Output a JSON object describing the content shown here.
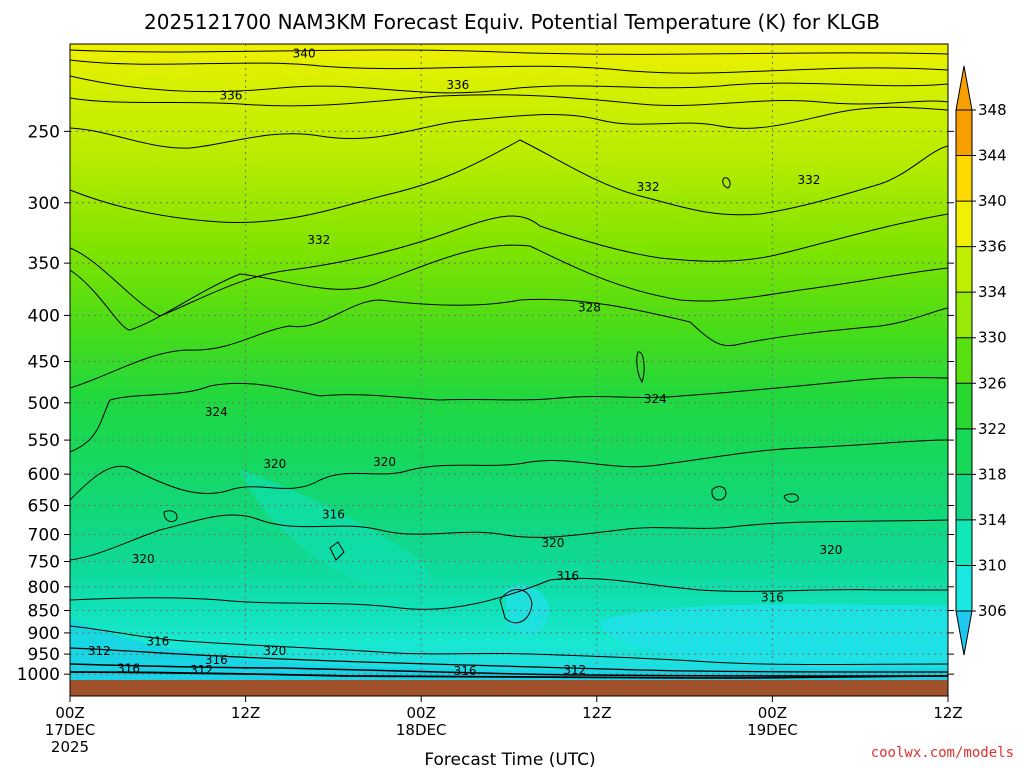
{
  "chart_data": {
    "type": "heatmap",
    "title": "2025121700 NAM3KM Forecast Equiv. Potential Temperature (K) for KLGB",
    "xlabel": "Forecast Time (UTC)",
    "ylabel": "",
    "x_ticks": [
      {
        "hour": 0,
        "label": "00Z",
        "date": "17DEC",
        "year": "2025"
      },
      {
        "hour": 12,
        "label": "12Z",
        "date": "",
        "year": ""
      },
      {
        "hour": 24,
        "label": "00Z",
        "date": "18DEC",
        "year": ""
      },
      {
        "hour": 36,
        "label": "12Z",
        "date": "",
        "year": ""
      },
      {
        "hour": 48,
        "label": "00Z",
        "date": "19DEC",
        "year": ""
      },
      {
        "hour": 60,
        "label": "12Z",
        "date": "",
        "year": ""
      }
    ],
    "xlim": [
      0,
      60
    ],
    "y_ticks": [
      250,
      300,
      350,
      400,
      450,
      500,
      550,
      600,
      650,
      700,
      750,
      800,
      850,
      900,
      950,
      1000
    ],
    "ylim": [
      1015,
      200
    ],
    "y_scale": "log-pressure",
    "colorbar_levels": [
      306,
      310,
      314,
      318,
      322,
      326,
      330,
      334,
      336,
      340,
      344,
      348
    ],
    "colorbar_colors": [
      "#1ec8f0",
      "#18e8e0",
      "#10e8b8",
      "#10d884",
      "#18d858",
      "#28d830",
      "#58e010",
      "#98e808",
      "#c0f000",
      "#f0f000",
      "#ffd800",
      "#f8a000"
    ],
    "contour_interval": 4,
    "contour_labels": [
      {
        "hour": 16.0,
        "p": 205,
        "value": 340
      },
      {
        "hour": 11.0,
        "p": 228,
        "value": 336
      },
      {
        "hour": 26.5,
        "p": 222,
        "value": 336
      },
      {
        "hour": 17.0,
        "p": 330,
        "value": 332
      },
      {
        "hour": 39.5,
        "p": 288,
        "value": 332
      },
      {
        "hour": 50.5,
        "p": 283,
        "value": 332
      },
      {
        "hour": 35.5,
        "p": 392,
        "value": 328
      },
      {
        "hour": 10.0,
        "p": 512,
        "value": 324
      },
      {
        "hour": 40.0,
        "p": 495,
        "value": 324
      },
      {
        "hour": 14.0,
        "p": 585,
        "value": 320
      },
      {
        "hour": 21.5,
        "p": 582,
        "value": 320
      },
      {
        "hour": 33.0,
        "p": 715,
        "value": 320
      },
      {
        "hour": 52.0,
        "p": 728,
        "value": 320
      },
      {
        "hour": 5.0,
        "p": 745,
        "value": 320
      },
      {
        "hour": 18.0,
        "p": 665,
        "value": 316
      },
      {
        "hour": 34.0,
        "p": 778,
        "value": 316
      },
      {
        "hour": 48.0,
        "p": 822,
        "value": 316
      },
      {
        "hour": 6.0,
        "p": 920,
        "value": 316
      },
      {
        "hour": 2.0,
        "p": 942,
        "value": 312
      },
      {
        "hour": 14.0,
        "p": 942,
        "value": 320
      },
      {
        "hour": 10.0,
        "p": 965,
        "value": 316
      },
      {
        "hour": 4.0,
        "p": 985,
        "value": 316
      },
      {
        "hour": 9.0,
        "p": 990,
        "value": 312
      },
      {
        "hour": 27.0,
        "p": 992,
        "value": 316
      },
      {
        "hour": 34.5,
        "p": 990,
        "value": 312
      }
    ]
  },
  "credit": "coolwx.com/models",
  "colors": {
    "ground": "#a0522d",
    "frame": "#000000",
    "grid": "#808080",
    "credit": "#e03030"
  }
}
